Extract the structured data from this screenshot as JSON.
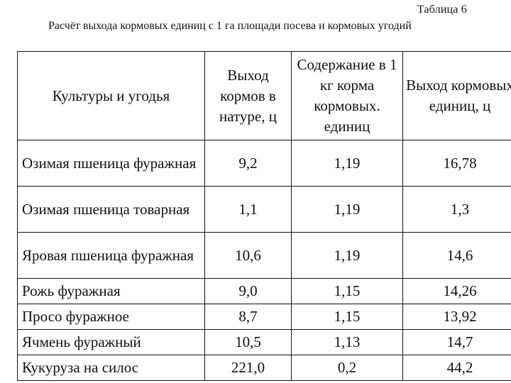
{
  "table_number": "Таблица  6",
  "caption": "Расчёт  выхода кормовых единиц с 1 га площади посева и кормовых угодий",
  "headers": {
    "crop": "Культуры и угодья",
    "yield": "Выход кормов в натуре, ц",
    "content": "Содержание в 1 кг корма кормовых. единиц",
    "units": "Выход кормовых единиц, ц"
  },
  "rows": [
    {
      "crop": "Озимая пшеница фуражная",
      "yield": "9,2",
      "content": "1,19",
      "units": "16,78"
    },
    {
      "crop": "Озимая пшеница товарная",
      "yield": "1,1",
      "content": "1,19",
      "units": "1,3"
    },
    {
      "crop": "Яровая пшеница фуражная",
      "yield": "10,6",
      "content": "1,19",
      "units": "14,6"
    },
    {
      "crop": "Рожь фуражная",
      "yield": "9,0",
      "content": "1,15",
      "units": "14,26"
    },
    {
      "crop": "Просо фуражное",
      "yield": "8,7",
      "content": "1,15",
      "units": "13,92"
    },
    {
      "crop": "Ячмень фуражный",
      "yield": "10,5",
      "content": "1,13",
      "units": "14,7"
    },
    {
      "crop": "Кукуруза на силос",
      "yield": "221,0",
      "content": "0,2",
      "units": "44,2"
    }
  ]
}
